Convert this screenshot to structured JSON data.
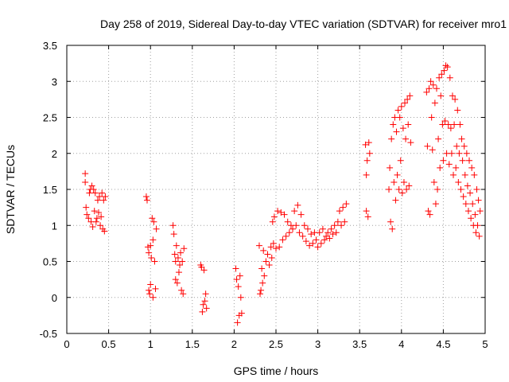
{
  "chart_data": {
    "type": "scatter",
    "title": "Day 258 of 2019, Sidereal Day-to-day VTEC variation (SDTVAR) for receiver mro1",
    "xlabel": "GPS time / hours",
    "ylabel": "SDTVAR / TECUs",
    "xlim": [
      0,
      5
    ],
    "ylim": [
      -0.5,
      3.5
    ],
    "x_ticks": [
      0,
      0.5,
      1,
      1.5,
      2,
      2.5,
      3,
      3.5,
      4,
      4.5,
      5
    ],
    "x_tick_labels": [
      "0",
      "0.5",
      "1",
      "1.5",
      "2",
      "2.5",
      "3",
      "3.5",
      "4",
      "4.5",
      "5"
    ],
    "y_ticks": [
      -0.5,
      0,
      0.5,
      1,
      1.5,
      2,
      2.5,
      3,
      3.5
    ],
    "y_tick_labels": [
      "-0.5",
      "0",
      "0.5",
      "1",
      "1.5",
      "2",
      "2.5",
      "3",
      "3.5"
    ],
    "grid": true,
    "marker": "+",
    "color": "#ff0000",
    "series": [
      {
        "name": "SDTVAR",
        "points": [
          [
            0.22,
            1.72
          ],
          [
            0.22,
            1.6
          ],
          [
            0.23,
            1.25
          ],
          [
            0.24,
            1.15
          ],
          [
            0.26,
            1.1
          ],
          [
            0.27,
            1.45
          ],
          [
            0.28,
            1.5
          ],
          [
            0.29,
            1.05
          ],
          [
            0.3,
            1.55
          ],
          [
            0.31,
            0.98
          ],
          [
            0.32,
            1.5
          ],
          [
            0.33,
            1.2
          ],
          [
            0.34,
            1.45
          ],
          [
            0.35,
            1.05
          ],
          [
            0.36,
            1.1
          ],
          [
            0.37,
            1.35
          ],
          [
            0.38,
            1.18
          ],
          [
            0.39,
            1.4
          ],
          [
            0.4,
            1.0
          ],
          [
            0.41,
            1.12
          ],
          [
            0.42,
            1.45
          ],
          [
            0.43,
            0.95
          ],
          [
            0.44,
            1.35
          ],
          [
            0.45,
            0.92
          ],
          [
            0.46,
            1.4
          ],
          [
            0.95,
            1.4
          ],
          [
            0.96,
            1.35
          ],
          [
            0.97,
            0.7
          ],
          [
            0.98,
            0.1
          ],
          [
            0.98,
            0.62
          ],
          [
            0.99,
            0.05
          ],
          [
            1.0,
            0.72
          ],
          [
            1.0,
            0.18
          ],
          [
            1.01,
            0.55
          ],
          [
            1.02,
            1.1
          ],
          [
            1.03,
            0.8
          ],
          [
            1.03,
            0.0
          ],
          [
            1.04,
            1.05
          ],
          [
            1.05,
            0.5
          ],
          [
            1.06,
            0.12
          ],
          [
            1.07,
            0.95
          ],
          [
            1.27,
            1.0
          ],
          [
            1.28,
            0.88
          ],
          [
            1.29,
            0.6
          ],
          [
            1.3,
            0.25
          ],
          [
            1.3,
            0.5
          ],
          [
            1.31,
            0.72
          ],
          [
            1.32,
            0.2
          ],
          [
            1.33,
            0.55
          ],
          [
            1.34,
            0.35
          ],
          [
            1.35,
            0.45
          ],
          [
            1.36,
            0.62
          ],
          [
            1.37,
            0.1
          ],
          [
            1.38,
            0.5
          ],
          [
            1.39,
            0.05
          ],
          [
            1.4,
            0.68
          ],
          [
            1.6,
            0.45
          ],
          [
            1.61,
            0.42
          ],
          [
            1.62,
            -0.2
          ],
          [
            1.63,
            -0.1
          ],
          [
            1.64,
            0.38
          ],
          [
            1.65,
            -0.05
          ],
          [
            1.66,
            0.05
          ],
          [
            1.67,
            -0.15
          ],
          [
            2.02,
            0.4
          ],
          [
            2.03,
            0.25
          ],
          [
            2.04,
            -0.35
          ],
          [
            2.05,
            0.15
          ],
          [
            2.06,
            -0.25
          ],
          [
            2.07,
            0.3
          ],
          [
            2.08,
            0.0
          ],
          [
            2.09,
            -0.22
          ],
          [
            2.3,
            0.72
          ],
          [
            2.31,
            0.05
          ],
          [
            2.32,
            0.1
          ],
          [
            2.33,
            0.4
          ],
          [
            2.34,
            0.2
          ],
          [
            2.35,
            0.65
          ],
          [
            2.36,
            0.3
          ],
          [
            2.38,
            0.5
          ],
          [
            2.4,
            0.6
          ],
          [
            2.42,
            0.45
          ],
          [
            2.44,
            0.7
          ],
          [
            2.45,
            0.55
          ],
          [
            2.46,
            1.05
          ],
          [
            2.47,
            0.75
          ],
          [
            2.48,
            1.12
          ],
          [
            2.5,
            0.68
          ],
          [
            2.52,
            1.2
          ],
          [
            2.54,
            0.7
          ],
          [
            2.56,
            1.18
          ],
          [
            2.58,
            0.8
          ],
          [
            2.6,
            1.15
          ],
          [
            2.62,
            0.85
          ],
          [
            2.64,
            1.05
          ],
          [
            2.66,
            0.9
          ],
          [
            2.68,
            1.0
          ],
          [
            2.7,
            0.95
          ],
          [
            2.72,
            1.2
          ],
          [
            2.74,
            1.0
          ],
          [
            2.76,
            1.28
          ],
          [
            2.78,
            0.9
          ],
          [
            2.8,
            1.15
          ],
          [
            2.82,
            0.85
          ],
          [
            2.84,
            1.0
          ],
          [
            2.86,
            0.78
          ],
          [
            2.88,
            0.95
          ],
          [
            2.9,
            0.72
          ],
          [
            2.92,
            0.88
          ],
          [
            2.94,
            0.75
          ],
          [
            2.96,
            0.9
          ],
          [
            2.98,
            0.8
          ],
          [
            3.0,
            0.7
          ],
          [
            3.02,
            0.9
          ],
          [
            3.04,
            0.75
          ],
          [
            3.06,
            0.95
          ],
          [
            3.08,
            0.8
          ],
          [
            3.1,
            0.85
          ],
          [
            3.12,
            0.9
          ],
          [
            3.14,
            0.82
          ],
          [
            3.16,
            0.95
          ],
          [
            3.18,
            0.88
          ],
          [
            3.2,
            1.0
          ],
          [
            3.22,
            0.9
          ],
          [
            3.24,
            1.05
          ],
          [
            3.26,
            1.2
          ],
          [
            3.28,
            1.0
          ],
          [
            3.3,
            1.25
          ],
          [
            3.32,
            1.05
          ],
          [
            3.34,
            1.3
          ],
          [
            3.57,
            2.12
          ],
          [
            3.58,
            1.7
          ],
          [
            3.58,
            1.2
          ],
          [
            3.59,
            1.9
          ],
          [
            3.6,
            1.12
          ],
          [
            3.61,
            2.15
          ],
          [
            3.62,
            2.0
          ],
          [
            3.85,
            1.5
          ],
          [
            3.86,
            1.8
          ],
          [
            3.87,
            1.05
          ],
          [
            3.88,
            2.2
          ],
          [
            3.89,
            0.95
          ],
          [
            3.9,
            2.4
          ],
          [
            3.91,
            1.6
          ],
          [
            3.92,
            2.5
          ],
          [
            3.93,
            1.35
          ],
          [
            3.94,
            2.3
          ],
          [
            3.95,
            1.7
          ],
          [
            3.96,
            2.6
          ],
          [
            3.97,
            1.5
          ],
          [
            3.98,
            2.5
          ],
          [
            3.99,
            1.9
          ],
          [
            4.0,
            2.65
          ],
          [
            4.01,
            1.45
          ],
          [
            4.02,
            2.35
          ],
          [
            4.03,
            1.6
          ],
          [
            4.04,
            2.7
          ],
          [
            4.05,
            2.2
          ],
          [
            4.06,
            1.5
          ],
          [
            4.07,
            2.75
          ],
          [
            4.08,
            2.4
          ],
          [
            4.09,
            1.55
          ],
          [
            4.1,
            2.8
          ],
          [
            4.11,
            2.15
          ],
          [
            4.3,
            2.85
          ],
          [
            4.31,
            2.1
          ],
          [
            4.32,
            1.2
          ],
          [
            4.33,
            2.9
          ],
          [
            4.34,
            1.15
          ],
          [
            4.35,
            3.0
          ],
          [
            4.36,
            2.5
          ],
          [
            4.37,
            2.05
          ],
          [
            4.38,
            2.95
          ],
          [
            4.39,
            1.6
          ],
          [
            4.4,
            2.7
          ],
          [
            4.41,
            1.3
          ],
          [
            4.42,
            2.9
          ],
          [
            4.43,
            1.5
          ],
          [
            4.44,
            2.2
          ],
          [
            4.45,
            3.05
          ],
          [
            4.46,
            1.8
          ],
          [
            4.47,
            2.8
          ],
          [
            4.48,
            3.1
          ],
          [
            4.49,
            2.4
          ],
          [
            4.5,
            1.9
          ],
          [
            4.51,
            3.15
          ],
          [
            4.52,
            2.45
          ],
          [
            4.53,
            3.22
          ],
          [
            4.54,
            2.0
          ],
          [
            4.55,
            3.2
          ],
          [
            4.56,
            2.4
          ],
          [
            4.57,
            1.85
          ],
          [
            4.58,
            3.05
          ],
          [
            4.59,
            2.35
          ],
          [
            4.6,
            2.0
          ],
          [
            4.61,
            2.8
          ],
          [
            4.62,
            1.7
          ],
          [
            4.63,
            2.4
          ],
          [
            4.64,
            2.75
          ],
          [
            4.65,
            1.8
          ],
          [
            4.66,
            2.1
          ],
          [
            4.67,
            2.6
          ],
          [
            4.68,
            1.6
          ],
          [
            4.69,
            2.0
          ],
          [
            4.7,
            2.4
          ],
          [
            4.71,
            1.5
          ],
          [
            4.72,
            2.2
          ],
          [
            4.73,
            1.9
          ],
          [
            4.74,
            1.4
          ],
          [
            4.75,
            2.1
          ],
          [
            4.76,
            1.7
          ],
          [
            4.77,
            1.3
          ],
          [
            4.78,
            2.0
          ],
          [
            4.79,
            1.55
          ],
          [
            4.8,
            1.2
          ],
          [
            4.81,
            1.9
          ],
          [
            4.82,
            1.45
          ],
          [
            4.83,
            1.1
          ],
          [
            4.84,
            1.8
          ],
          [
            4.85,
            1.3
          ],
          [
            4.86,
            1.0
          ],
          [
            4.87,
            1.7
          ],
          [
            4.88,
            1.15
          ],
          [
            4.89,
            0.9
          ],
          [
            4.9,
            1.5
          ],
          [
            4.91,
            1.0
          ],
          [
            4.92,
            1.35
          ],
          [
            4.93,
            0.85
          ],
          [
            4.94,
            1.2
          ]
        ]
      }
    ]
  }
}
